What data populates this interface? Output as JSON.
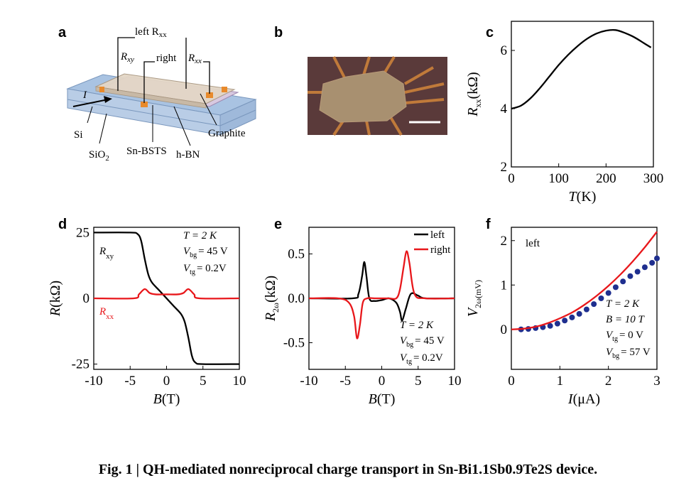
{
  "panels": {
    "a": {
      "label": "a",
      "labels": [
        "left R",
        "xx",
        "R",
        "xy",
        "right",
        "R",
        "xx",
        "I",
        "Si",
        "SiO",
        "2",
        "Sn-BSTS",
        "h-BN",
        "Graphite"
      ]
    },
    "b": {
      "label": "b"
    },
    "c": {
      "label": "c"
    },
    "d": {
      "label": "d"
    },
    "e": {
      "label": "e"
    },
    "f": {
      "label": "f"
    }
  },
  "colors": {
    "black": "#000000",
    "red": "#e8171b",
    "blue": "#1f2f8f",
    "substrate": "#b9cde6",
    "device_top": "#e3d6c6",
    "contact": "#e88a2c"
  },
  "chart_data": [
    {
      "panel": "c",
      "type": "line",
      "xlabel": "T(K)",
      "ylabel": "R_xx (kΩ)",
      "xlim": [
        0,
        300
      ],
      "ylim": [
        2,
        7
      ],
      "xticks": [
        "0",
        "100",
        "200",
        "300"
      ],
      "yticks": [
        "2",
        "4",
        "6"
      ],
      "series": [
        {
          "color": "#000000",
          "x": [
            0,
            20,
            40,
            60,
            80,
            100,
            120,
            140,
            160,
            180,
            200,
            220,
            240,
            260,
            280,
            295
          ],
          "y": [
            4.0,
            4.1,
            4.35,
            4.7,
            5.1,
            5.5,
            5.85,
            6.15,
            6.4,
            6.58,
            6.68,
            6.7,
            6.6,
            6.45,
            6.25,
            6.1
          ]
        }
      ]
    },
    {
      "panel": "d",
      "type": "line",
      "xlabel": "B(T)",
      "ylabel": "R(kΩ)",
      "xlim": [
        -10,
        10
      ],
      "ylim": [
        -27,
        27
      ],
      "xticks": [
        "-10",
        "-5",
        "0",
        "5",
        "10"
      ],
      "yticks": [
        "25",
        "0",
        "-25"
      ],
      "annotations": [
        "T = 2 K",
        "V",
        "bg",
        "= 45 V",
        "V",
        "tg",
        "= 0.2V"
      ],
      "series": [
        {
          "name": "R_xy",
          "label_main": "R",
          "label_sub": "xy",
          "color": "#000000",
          "x": [
            -10,
            -5,
            -4,
            -3.5,
            -3,
            -2.5,
            -2,
            -1,
            0,
            1,
            2,
            2.5,
            3,
            3.5,
            4,
            5,
            10
          ],
          "y": [
            25,
            25,
            24.5,
            22,
            15,
            9,
            6,
            3,
            0,
            -3,
            -6,
            -9,
            -15,
            -22,
            -24.5,
            -25,
            -25
          ]
        },
        {
          "name": "R_xx",
          "label_main": "R",
          "label_sub": "xx",
          "color": "#e8171b",
          "x": [
            -10,
            -4.5,
            -3.8,
            -3,
            -2.3,
            -1.5,
            0,
            1.5,
            2.3,
            3,
            3.8,
            4.5,
            10
          ],
          "y": [
            0,
            0,
            1.5,
            3.5,
            2,
            1.5,
            1.5,
            1.5,
            2,
            3.5,
            1.5,
            0,
            0
          ]
        }
      ]
    },
    {
      "panel": "e",
      "type": "line",
      "xlabel": "B(T)",
      "ylabel": "R_2ω (kΩ)",
      "xlim": [
        -10,
        10
      ],
      "ylim": [
        -0.8,
        0.8
      ],
      "xticks": [
        "-10",
        "-5",
        "0",
        "5",
        "10"
      ],
      "yticks": [
        "0.5",
        "0.0",
        "-0.5"
      ],
      "annotations": [
        "T = 2 K",
        "V",
        "bg",
        "= 45 V",
        "V",
        "tg",
        "= 0.2V"
      ],
      "series": [
        {
          "name": "left",
          "color": "#000000",
          "x": [
            -10,
            -4,
            -3.2,
            -2.7,
            -2.4,
            -2.1,
            -1.7,
            -1,
            0,
            1,
            2,
            2.5,
            2.8,
            3.3,
            4,
            5,
            6,
            10
          ],
          "y": [
            0,
            0,
            0.05,
            0.25,
            0.41,
            0.25,
            0.0,
            -0.03,
            -0.02,
            0.0,
            -0.05,
            -0.15,
            -0.25,
            -0.12,
            0.05,
            0.03,
            0,
            0
          ]
        },
        {
          "name": "right",
          "color": "#e8171b",
          "x": [
            -10,
            -6,
            -4.5,
            -3.8,
            -3.4,
            -3.0,
            -2.6,
            -2,
            -1,
            0,
            1,
            2,
            2.5,
            3,
            3.4,
            3.8,
            4.5,
            6,
            10
          ],
          "y": [
            0,
            0,
            -0.05,
            -0.2,
            -0.45,
            -0.3,
            -0.05,
            0,
            0,
            0,
            0,
            0,
            0.1,
            0.35,
            0.53,
            0.4,
            0.05,
            0,
            0
          ]
        }
      ]
    },
    {
      "panel": "f",
      "type": "scatter",
      "xlabel": "I(μA)",
      "ylabel": "V_2ω(mV)",
      "xlim": [
        0,
        3
      ],
      "ylim": [
        -0.9,
        2.3
      ],
      "xticks": [
        "0",
        "1",
        "2",
        "3"
      ],
      "yticks": [
        "0",
        "1",
        "2"
      ],
      "annotations": [
        "left",
        "T = 2 K",
        "B = 10 T",
        "V",
        "tg",
        "= 0 V",
        "V",
        "bg",
        "= 57 V"
      ],
      "series": [
        {
          "type": "scatter",
          "color": "#1f2f8f",
          "x": [
            0.2,
            0.35,
            0.5,
            0.65,
            0.8,
            0.95,
            1.1,
            1.25,
            1.4,
            1.55,
            1.7,
            1.85,
            2.0,
            2.15,
            2.3,
            2.45,
            2.6,
            2.75,
            2.9,
            3.0
          ],
          "y": [
            0.0,
            0.01,
            0.03,
            0.05,
            0.08,
            0.13,
            0.2,
            0.27,
            0.35,
            0.45,
            0.57,
            0.7,
            0.82,
            0.95,
            1.08,
            1.2,
            1.3,
            1.4,
            1.5,
            1.6
          ]
        },
        {
          "type": "line",
          "color": "#e8171b",
          "x": [
            0,
            0.25,
            0.5,
            0.75,
            1.0,
            1.25,
            1.5,
            1.75,
            2.0,
            2.25,
            2.5,
            2.75,
            3.0
          ],
          "y": [
            0,
            0.015,
            0.06,
            0.14,
            0.25,
            0.38,
            0.55,
            0.75,
            0.98,
            1.24,
            1.53,
            1.85,
            2.2
          ]
        }
      ]
    }
  ],
  "caption": "Fig. 1 | QH-mediated nonreciprocal charge transport in Sn-Bi1.1Sb0.9Te2S device."
}
